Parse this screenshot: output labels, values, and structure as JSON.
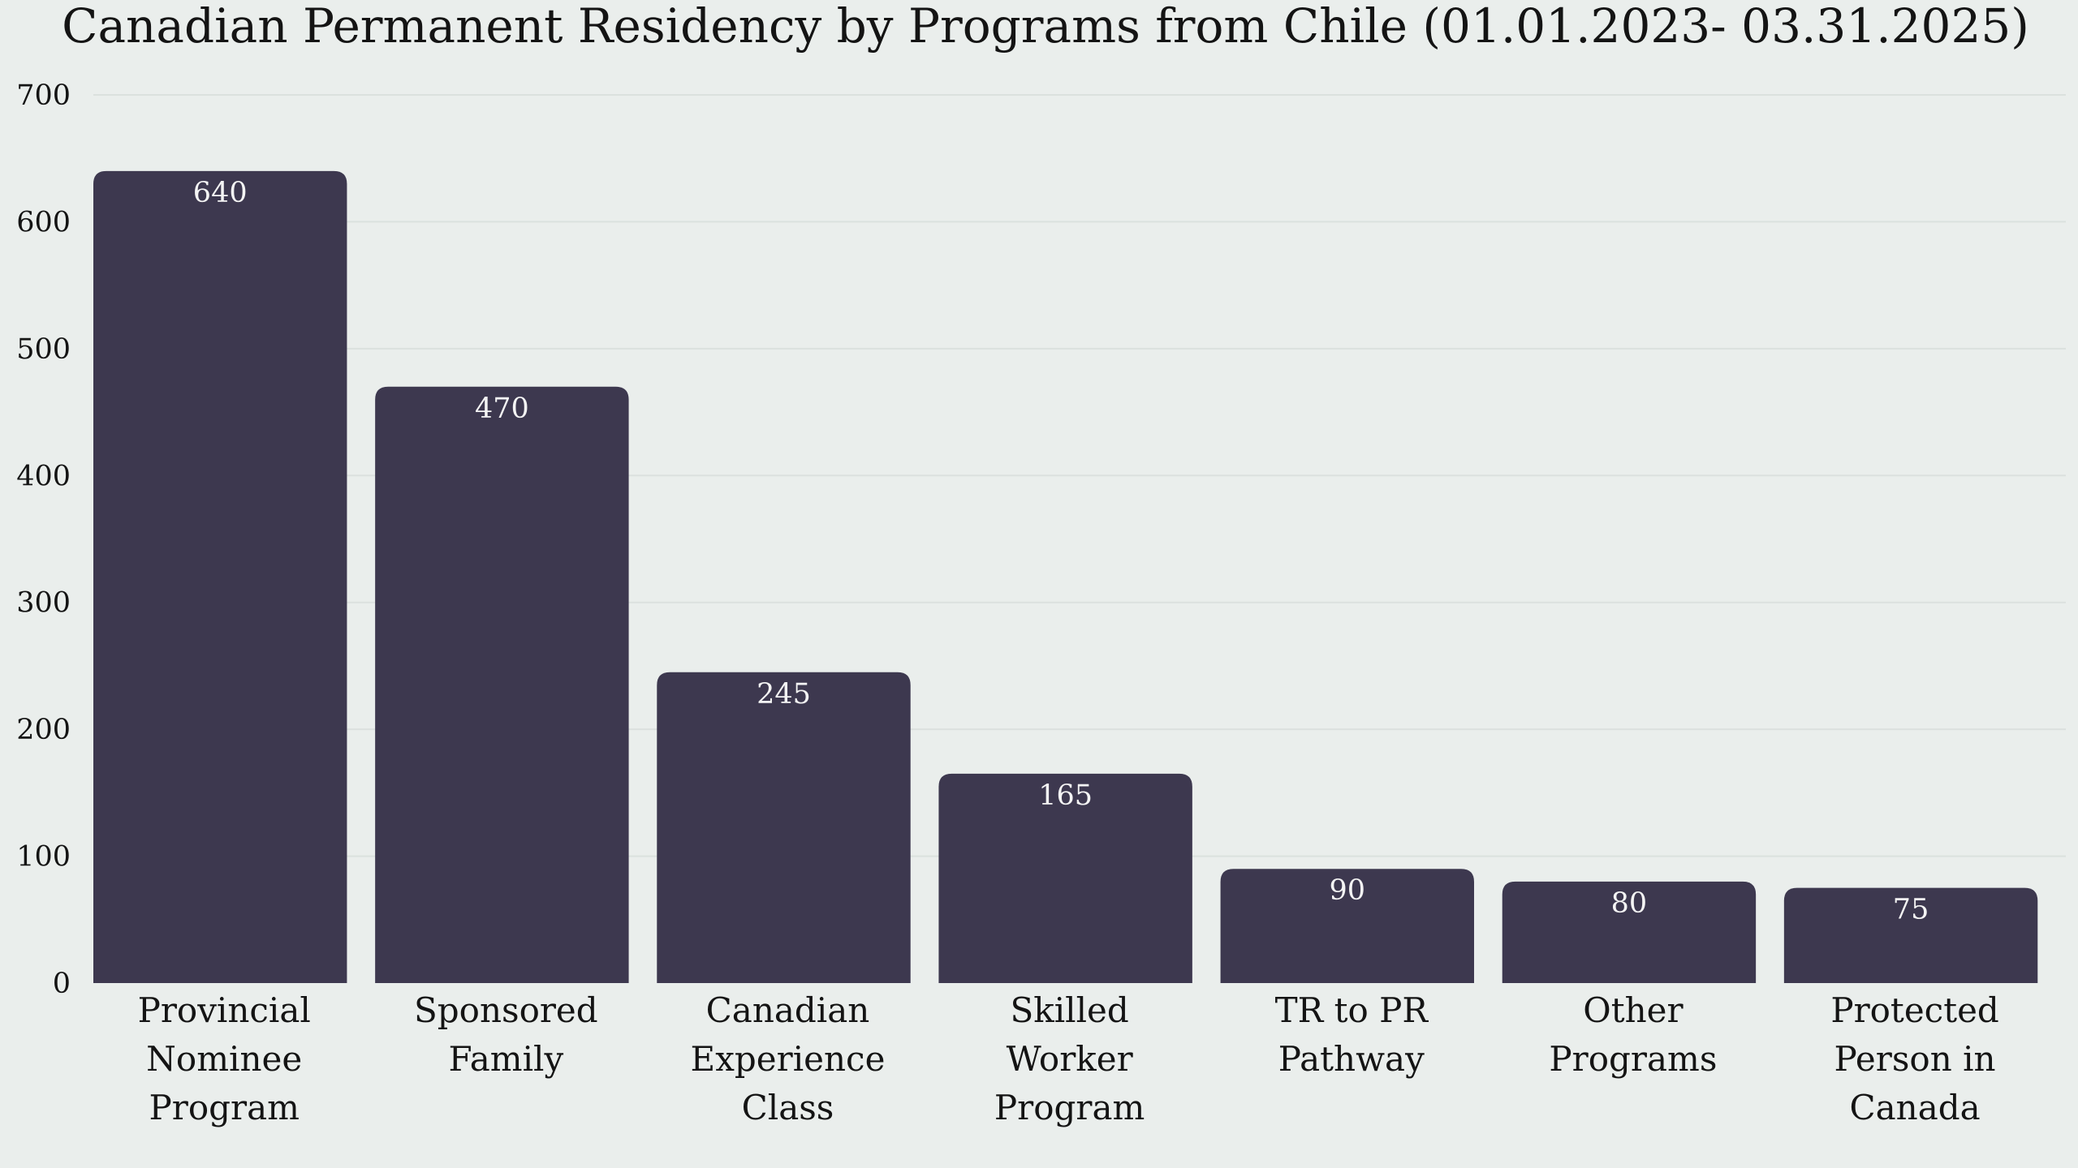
{
  "chart_data": {
    "type": "bar",
    "title": "Canadian Permanent Residency by Programs from Chile (01.01.2023- 03.31.2025)",
    "xlabel": "",
    "ylabel": "",
    "categories": [
      [
        "Provincial",
        "Nominee",
        "Program"
      ],
      [
        "Sponsored",
        "Family"
      ],
      [
        "Canadian",
        "Experience",
        "Class"
      ],
      [
        "Skilled",
        "Worker",
        "Program"
      ],
      [
        "TR to PR",
        "Pathway"
      ],
      [
        "Other",
        "Programs"
      ],
      [
        "Protected",
        "Person in",
        "Canada"
      ]
    ],
    "values": [
      640,
      470,
      245,
      165,
      90,
      80,
      75
    ],
    "data_labels": [
      "640",
      "470",
      "245",
      "165",
      "90",
      "80",
      "75"
    ],
    "ylim": [
      0,
      700
    ],
    "yticks": [
      0,
      100,
      200,
      300,
      400,
      500,
      600,
      700
    ],
    "grid": true,
    "legend": "none",
    "colors": {
      "background": "#eaeeec",
      "bar": "#3d384f",
      "grid": "#dbe1de",
      "text": "#141414",
      "bar_label": "#f4f4f4"
    }
  }
}
